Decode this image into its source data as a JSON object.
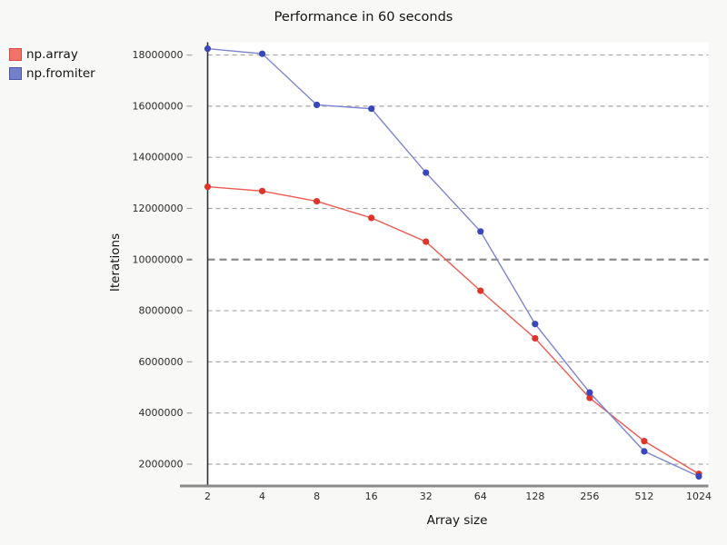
{
  "chart_data": {
    "type": "line",
    "title": "Performance in 60 seconds",
    "xlabel": "Array size",
    "ylabel": "Iterations",
    "categories": [
      2,
      4,
      8,
      16,
      32,
      64,
      128,
      256,
      512,
      1024
    ],
    "series": [
      {
        "name": "np.array",
        "line_color": "#ee5a50",
        "marker_color": "#e0332a",
        "legend_color": "#f0736b",
        "legend_border": "#d84b42",
        "values": [
          12850000,
          12680000,
          12280000,
          11630000,
          10700000,
          8780000,
          6920000,
          4590000,
          2900000,
          1620000
        ]
      },
      {
        "name": "np.fromiter",
        "line_color": "#7b85cd",
        "marker_color": "#3847bb",
        "legend_color": "#7580cb",
        "legend_border": "#4a56ae",
        "values": [
          18250000,
          18050000,
          16050000,
          15900000,
          13400000,
          11100000,
          7480000,
          4800000,
          2500000,
          1520000
        ]
      }
    ],
    "y_ticks": [
      2000000,
      4000000,
      6000000,
      8000000,
      10000000,
      12000000,
      14000000,
      16000000,
      18000000
    ],
    "ylim": [
      1200000,
      18500000
    ],
    "reference_line_y": 10000000,
    "grid": "horizontal-dashed",
    "legend_position": "upper-left-outside",
    "colors": {
      "page_background": "#f8f8f7",
      "plot_background": "#ffffff",
      "gridline": "#a6a6a6",
      "reference_line": "#8c8c8c",
      "y_spine": "#2e2e2e",
      "x_spine": "#8a8a8a",
      "tick_label": "#2b2b2b"
    }
  }
}
